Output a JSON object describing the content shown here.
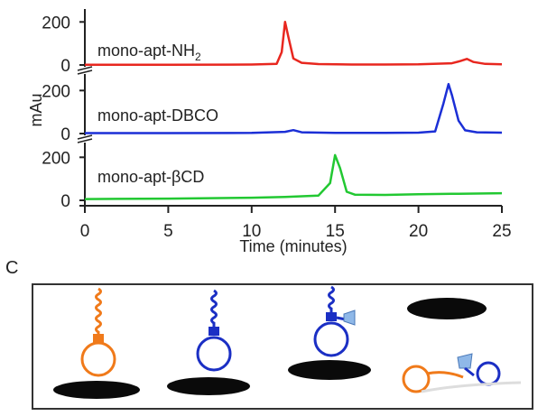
{
  "chart_data": {
    "type": "line",
    "xlabel": "Time (minutes)",
    "ylabel": "mAu",
    "xlim": [
      0,
      25
    ],
    "x_ticks": [
      "0",
      "5",
      "10",
      "15",
      "20",
      "25"
    ],
    "panel_y_ticks": [
      "200",
      "0"
    ],
    "panel_ylim": [
      0,
      260
    ],
    "grid": false,
    "series": [
      {
        "name": "mono-apt-NH",
        "name_subscript": "2",
        "color": "#e8271f",
        "x": [
          0,
          5,
          10,
          11.5,
          11.8,
          12.0,
          12.2,
          12.5,
          13.0,
          14,
          16,
          18,
          20,
          22,
          22.5,
          22.9,
          23.3,
          24,
          25
        ],
        "y": [
          1,
          1,
          2,
          5,
          60,
          200,
          130,
          30,
          10,
          4,
          2,
          2,
          3,
          8,
          18,
          28,
          14,
          5,
          3
        ]
      },
      {
        "name": "mono-apt-DBCO",
        "color": "#1b2fd6",
        "x": [
          0,
          5,
          10,
          12.0,
          12.5,
          13.0,
          15,
          18,
          20,
          21.0,
          21.5,
          21.8,
          22.0,
          22.4,
          22.8,
          23.5,
          25
        ],
        "y": [
          2,
          2,
          3,
          8,
          16,
          6,
          3,
          3,
          4,
          10,
          140,
          230,
          180,
          60,
          15,
          6,
          4
        ]
      },
      {
        "name": "mono-apt-βCD",
        "color": "#22c832",
        "x": [
          0,
          5,
          10,
          12,
          14,
          14.7,
          15.0,
          15.3,
          15.7,
          16.2,
          18,
          20,
          22,
          25
        ],
        "y": [
          6,
          8,
          12,
          16,
          22,
          80,
          210,
          150,
          40,
          26,
          25,
          28,
          30,
          33
        ]
      }
    ]
  },
  "panel_c": {
    "letter": "C"
  }
}
